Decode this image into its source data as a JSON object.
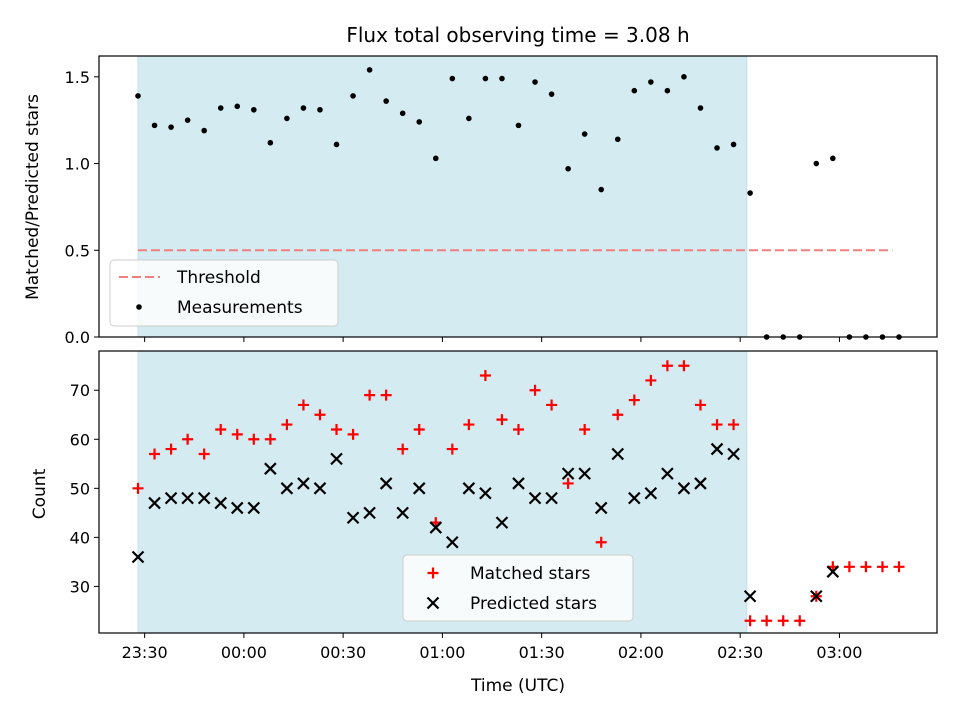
{
  "chart_data": [
    {
      "type": "scatter",
      "title": "Flux total observing time = 3.08 h",
      "ylabel": "Matched/Predicted stars",
      "xlabel": "",
      "ylim": [
        0,
        1.62
      ],
      "yticks": [
        "0.0",
        "0.5",
        "1.0",
        "1.5"
      ],
      "ytick_values": [
        0,
        0.5,
        1.0,
        1.5
      ],
      "xticks_labels_shown": false,
      "shaded_region": {
        "x_start": "23:28",
        "x_end": "02:32",
        "color": "#d4ebf1"
      },
      "threshold": {
        "name": "Threshold",
        "y": 0.5,
        "x_start": "23:28",
        "x_end": "03:16",
        "color": "#f08080"
      },
      "legend_position": "lower-left",
      "series": [
        {
          "name": "Measurements",
          "marker": "dot",
          "color": "#000000",
          "x": [
            "23:28",
            "23:33",
            "23:38",
            "23:43",
            "23:48",
            "23:53",
            "23:58",
            "00:03",
            "00:08",
            "00:13",
            "00:18",
            "00:23",
            "00:28",
            "00:33",
            "00:38",
            "00:43",
            "00:48",
            "00:53",
            "00:58",
            "01:03",
            "01:08",
            "01:13",
            "01:18",
            "01:23",
            "01:28",
            "01:33",
            "01:38",
            "01:43",
            "01:48",
            "01:53",
            "01:58",
            "02:03",
            "02:08",
            "02:13",
            "02:18",
            "02:23",
            "02:28",
            "02:33",
            "02:38",
            "02:43",
            "02:48",
            "02:53",
            "02:58",
            "03:03",
            "03:08",
            "03:13",
            "03:18"
          ],
          "y": [
            1.39,
            1.22,
            1.21,
            1.25,
            1.19,
            1.32,
            1.33,
            1.31,
            1.12,
            1.26,
            1.32,
            1.31,
            1.11,
            1.39,
            1.54,
            1.36,
            1.29,
            1.24,
            1.03,
            1.49,
            1.26,
            1.49,
            1.49,
            1.22,
            1.47,
            1.4,
            0.97,
            1.17,
            0.85,
            1.14,
            1.42,
            1.47,
            1.42,
            1.5,
            1.32,
            1.09,
            1.11,
            0.83,
            0.0,
            0.0,
            0.0,
            1.0,
            1.03,
            0.0,
            0.0,
            0.0,
            0.0
          ]
        }
      ]
    },
    {
      "type": "scatter",
      "title": "",
      "ylabel": "Count",
      "xlabel": "Time (UTC)",
      "ylim": [
        20.5,
        78
      ],
      "yticks": [
        "30",
        "40",
        "50",
        "60",
        "70"
      ],
      "ytick_values": [
        30,
        40,
        50,
        60,
        70
      ],
      "xticks": [
        "23:30",
        "00:00",
        "00:30",
        "01:00",
        "01:30",
        "02:00",
        "02:30",
        "03:00"
      ],
      "shaded_region": {
        "x_start": "23:28",
        "x_end": "02:32",
        "color": "#d4ebf1"
      },
      "legend_position": "lower-center",
      "series": [
        {
          "name": "Matched stars",
          "marker": "plus",
          "color": "#ff0000",
          "x": [
            "23:28",
            "23:33",
            "23:38",
            "23:43",
            "23:48",
            "23:53",
            "23:58",
            "00:03",
            "00:08",
            "00:13",
            "00:18",
            "00:23",
            "00:28",
            "00:33",
            "00:38",
            "00:43",
            "00:48",
            "00:53",
            "00:58",
            "01:03",
            "01:08",
            "01:13",
            "01:18",
            "01:23",
            "01:28",
            "01:33",
            "01:38",
            "01:43",
            "01:48",
            "01:53",
            "01:58",
            "02:03",
            "02:08",
            "02:13",
            "02:18",
            "02:23",
            "02:28",
            "02:33",
            "02:38",
            "02:43",
            "02:48",
            "02:53",
            "02:58",
            "03:03",
            "03:08",
            "03:13",
            "03:18"
          ],
          "y": [
            50,
            57,
            58,
            60,
            57,
            62,
            61,
            60,
            60,
            63,
            67,
            65,
            62,
            61,
            69,
            69,
            58,
            62,
            43,
            58,
            63,
            73,
            64,
            62,
            70,
            67,
            51,
            62,
            39,
            65,
            68,
            72,
            75,
            75,
            67,
            63,
            63,
            23,
            23,
            23,
            23,
            28,
            34,
            34,
            34,
            34,
            34
          ]
        },
        {
          "name": "Predicted stars",
          "marker": "x",
          "color": "#000000",
          "x": [
            "23:28",
            "23:33",
            "23:38",
            "23:43",
            "23:48",
            "23:53",
            "23:58",
            "00:03",
            "00:08",
            "00:13",
            "00:18",
            "00:23",
            "00:28",
            "00:33",
            "00:38",
            "00:43",
            "00:48",
            "00:53",
            "00:58",
            "01:03",
            "01:08",
            "01:13",
            "01:18",
            "01:23",
            "01:28",
            "01:33",
            "01:38",
            "01:43",
            "01:48",
            "01:53",
            "01:58",
            "02:03",
            "02:08",
            "02:13",
            "02:18",
            "02:23",
            "02:28",
            "02:33",
            "02:53",
            "02:58"
          ],
          "y": [
            36,
            47,
            48,
            48,
            48,
            47,
            46,
            46,
            54,
            50,
            51,
            50,
            56,
            44,
            45,
            51,
            45,
            50,
            42,
            39,
            50,
            49,
            43,
            51,
            48,
            48,
            53,
            53,
            46,
            57,
            48,
            49,
            53,
            50,
            51,
            58,
            57,
            28,
            28,
            33
          ]
        }
      ]
    }
  ]
}
